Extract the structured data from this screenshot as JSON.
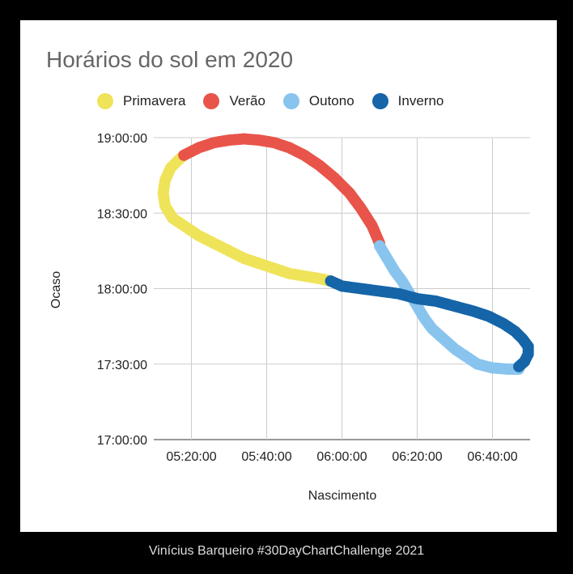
{
  "credit": "Vinícius Barqueiro #30DayChartChallenge 2021",
  "chart_data": {
    "type": "scatter",
    "title": "Horários do sol em 2020",
    "xlabel": "Nascimento",
    "ylabel": "Ocaso",
    "xlim": [
      "05:10:00",
      "06:50:00"
    ],
    "ylim": [
      "17:00:00",
      "19:00:00"
    ],
    "x_ticks": [
      "05:20:00",
      "05:40:00",
      "06:00:00",
      "06:20:00",
      "06:40:00"
    ],
    "y_ticks": [
      "17:00:00",
      "17:30:00",
      "18:00:00",
      "18:30:00",
      "19:00:00"
    ],
    "grid": true,
    "legend_position": "top",
    "series": [
      {
        "name": "Primavera",
        "color": "#efe35a",
        "points": [
          [
            "05:57:00",
            "18:03:00"
          ],
          [
            "05:54:00",
            "18:04:00"
          ],
          [
            "05:50:00",
            "18:05:00"
          ],
          [
            "05:46:00",
            "18:06:00"
          ],
          [
            "05:42:00",
            "18:08:00"
          ],
          [
            "05:38:00",
            "18:10:00"
          ],
          [
            "05:34:00",
            "18:12:00"
          ],
          [
            "05:30:00",
            "18:15:00"
          ],
          [
            "05:26:00",
            "18:18:00"
          ],
          [
            "05:22:00",
            "18:21:00"
          ],
          [
            "05:18:00",
            "18:25:00"
          ],
          [
            "05:15:00",
            "18:28:00"
          ],
          [
            "05:13:00",
            "18:33:00"
          ],
          [
            "05:12:30",
            "18:38:00"
          ],
          [
            "05:13:00",
            "18:43:00"
          ],
          [
            "05:14:30",
            "18:48:00"
          ],
          [
            "05:16:30",
            "18:51:00"
          ],
          [
            "05:18:00",
            "18:53:00"
          ]
        ]
      },
      {
        "name": "Verão",
        "color": "#e8544a",
        "points": [
          [
            "05:18:00",
            "18:53:00"
          ],
          [
            "05:22:00",
            "18:56:00"
          ],
          [
            "05:26:00",
            "18:58:00"
          ],
          [
            "05:30:00",
            "18:59:00"
          ],
          [
            "05:34:00",
            "18:59:30"
          ],
          [
            "05:38:00",
            "18:59:00"
          ],
          [
            "05:42:00",
            "18:58:00"
          ],
          [
            "05:46:00",
            "18:56:00"
          ],
          [
            "05:50:00",
            "18:53:00"
          ],
          [
            "05:54:00",
            "18:49:00"
          ],
          [
            "05:58:00",
            "18:44:00"
          ],
          [
            "06:02:00",
            "18:38:00"
          ],
          [
            "06:05:00",
            "18:32:00"
          ],
          [
            "06:08:00",
            "18:25:00"
          ],
          [
            "06:10:00",
            "18:18:00"
          ]
        ]
      },
      {
        "name": "Outono",
        "color": "#88c4ee",
        "points": [
          [
            "06:10:00",
            "18:17:00"
          ],
          [
            "06:12:00",
            "18:12:00"
          ],
          [
            "06:14:00",
            "18:07:00"
          ],
          [
            "06:16:00",
            "18:03:00"
          ],
          [
            "06:18:00",
            "17:58:00"
          ],
          [
            "06:20:00",
            "17:53:00"
          ],
          [
            "06:22:00",
            "17:48:00"
          ],
          [
            "06:24:00",
            "17:44:00"
          ],
          [
            "06:27:00",
            "17:40:00"
          ],
          [
            "06:30:00",
            "17:36:00"
          ],
          [
            "06:33:00",
            "17:33:00"
          ],
          [
            "06:36:00",
            "17:30:00"
          ],
          [
            "06:40:00",
            "17:28:30"
          ],
          [
            "06:44:00",
            "17:28:00"
          ],
          [
            "06:47:00",
            "17:28:00"
          ]
        ]
      },
      {
        "name": "Inverno",
        "color": "#1565a8",
        "points": [
          [
            "06:47:00",
            "17:29:00"
          ],
          [
            "06:48:30",
            "17:31:00"
          ],
          [
            "06:49:30",
            "17:34:00"
          ],
          [
            "06:49:30",
            "17:37:00"
          ],
          [
            "06:48:00",
            "17:40:00"
          ],
          [
            "06:46:00",
            "17:43:00"
          ],
          [
            "06:43:00",
            "17:46:00"
          ],
          [
            "06:39:00",
            "17:49:00"
          ],
          [
            "06:35:00",
            "17:51:00"
          ],
          [
            "06:30:00",
            "17:53:00"
          ],
          [
            "06:25:00",
            "17:55:00"
          ],
          [
            "06:20:00",
            "17:56:00"
          ],
          [
            "06:15:00",
            "17:58:00"
          ],
          [
            "06:10:00",
            "17:59:00"
          ],
          [
            "06:05:00",
            "18:00:00"
          ],
          [
            "06:00:00",
            "18:01:00"
          ],
          [
            "05:57:00",
            "18:03:00"
          ]
        ]
      }
    ]
  }
}
